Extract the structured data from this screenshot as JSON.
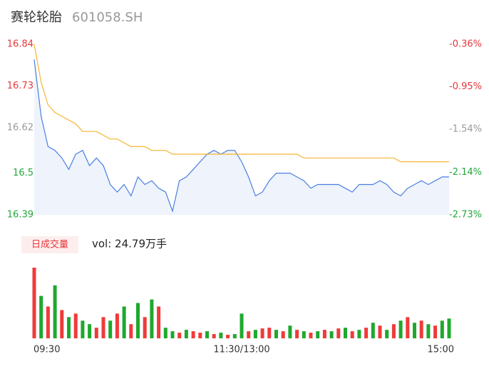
{
  "header": {
    "name": "赛轮轮胎",
    "code": "601058.SH"
  },
  "chart_data": [
    {
      "type": "line",
      "categories": [
        "09:30",
        null,
        null,
        null,
        null,
        null,
        null,
        null,
        null,
        null,
        null,
        null,
        null,
        null,
        null,
        null,
        null,
        null,
        null,
        null,
        null,
        null,
        null,
        null,
        null,
        null,
        null,
        null,
        null,
        null,
        "11:30/13:00",
        null,
        null,
        null,
        null,
        null,
        null,
        null,
        null,
        null,
        null,
        null,
        null,
        null,
        null,
        null,
        null,
        null,
        null,
        null,
        null,
        null,
        null,
        null,
        null,
        null,
        null,
        null,
        null,
        null,
        "15:00"
      ],
      "series": [
        {
          "color": "#4a7fe0",
          "fill": "#eef3fc",
          "values": [
            16.8,
            16.65,
            16.57,
            16.56,
            16.54,
            16.51,
            16.55,
            16.56,
            16.52,
            16.54,
            16.52,
            16.47,
            16.45,
            16.47,
            16.44,
            16.49,
            16.47,
            16.48,
            16.46,
            16.45,
            16.4,
            16.48,
            16.49,
            16.51,
            16.53,
            16.55,
            16.56,
            16.55,
            16.56,
            16.56,
            16.53,
            16.49,
            16.44,
            16.45,
            16.48,
            16.5,
            16.5,
            16.5,
            16.49,
            16.48,
            16.46,
            16.47,
            16.47,
            16.47,
            16.47,
            16.46,
            16.45,
            16.47,
            16.47,
            16.47,
            16.48,
            16.47,
            16.45,
            16.44,
            16.46,
            16.47,
            16.48,
            16.47,
            16.48,
            16.49,
            16.49
          ]
        },
        {
          "color": "#f5b530",
          "values": [
            16.84,
            16.74,
            16.68,
            16.66,
            16.65,
            16.64,
            16.63,
            16.61,
            16.61,
            16.61,
            16.6,
            16.59,
            16.59,
            16.58,
            16.57,
            16.57,
            16.57,
            16.56,
            16.56,
            16.56,
            16.55,
            16.55,
            16.55,
            16.55,
            16.55,
            16.55,
            16.55,
            16.55,
            16.55,
            16.55,
            16.55,
            16.55,
            16.55,
            16.55,
            16.55,
            16.55,
            16.55,
            16.55,
            16.55,
            16.54,
            16.54,
            16.54,
            16.54,
            16.54,
            16.54,
            16.54,
            16.54,
            16.54,
            16.54,
            16.54,
            16.54,
            16.54,
            16.54,
            16.53,
            16.53,
            16.53,
            16.53,
            16.53,
            16.53,
            16.53,
            16.53
          ]
        }
      ],
      "ylim": [
        16.39,
        16.84
      ],
      "yticks": [
        16.84,
        16.73,
        16.62,
        16.5,
        16.39
      ],
      "y2lim": [
        -2.73,
        -0.36
      ],
      "y2ticks": [
        {
          "value": -0.36,
          "label": "-0.36%"
        },
        {
          "value": -0.95,
          "label": "-0.95%"
        },
        {
          "value": -1.54,
          "label": "-1.54%"
        },
        {
          "value": -2.14,
          "label": "-2.14%"
        },
        {
          "value": -2.73,
          "label": "-2.73%"
        }
      ],
      "tick_colors": [
        "#e8363b",
        "#e8363b",
        "#999999",
        "#22a83a",
        "#22a83a"
      ]
    },
    {
      "type": "bar",
      "title": "日成交量",
      "subtitle": "vol: 24.79万手",
      "ylim": [
        0,
        100
      ],
      "values": [
        100,
        60,
        45,
        75,
        40,
        30,
        35,
        25,
        20,
        15,
        30,
        25,
        35,
        45,
        20,
        50,
        30,
        55,
        45,
        15,
        10,
        8,
        12,
        10,
        8,
        10,
        6,
        8,
        5,
        6,
        35,
        10,
        12,
        14,
        15,
        12,
        10,
        18,
        12,
        10,
        8,
        10,
        12,
        10,
        14,
        15,
        10,
        12,
        15,
        22,
        18,
        12,
        20,
        25,
        30,
        22,
        25,
        20,
        18,
        25,
        28
      ],
      "colors": [
        "#f03a3a",
        "#1fa82e",
        "#f03a3a",
        "#1fa82e",
        "#f03a3a",
        "#1fa82e",
        "#f03a3a",
        "#1fa82e",
        "#1fa82e",
        "#f03a3a",
        "#f03a3a",
        "#1fa82e",
        "#f03a3a",
        "#1fa82e",
        "#f03a3a",
        "#1fa82e",
        "#f03a3a",
        "#1fa82e",
        "#f03a3a",
        "#1fa82e",
        "#1fa82e",
        "#f03a3a",
        "#1fa82e",
        "#f03a3a",
        "#f03a3a",
        "#1fa82e",
        "#f03a3a",
        "#1fa82e",
        "#f03a3a",
        "#1fa82e",
        "#1fa82e",
        "#f03a3a",
        "#1fa82e",
        "#f03a3a",
        "#f03a3a",
        "#1fa82e",
        "#f03a3a",
        "#1fa82e",
        "#f03a3a",
        "#1fa82e",
        "#f03a3a",
        "#1fa82e",
        "#f03a3a",
        "#1fa82e",
        "#f03a3a",
        "#1fa82e",
        "#f03a3a",
        "#1fa82e",
        "#f03a3a",
        "#1fa82e",
        "#f03a3a",
        "#1fa82e",
        "#f03a3a",
        "#1fa82e",
        "#f03a3a",
        "#1fa82e",
        "#f03a3a",
        "#1fa82e",
        "#f03a3a",
        "#1fa82e",
        "#1fa82e"
      ]
    }
  ]
}
